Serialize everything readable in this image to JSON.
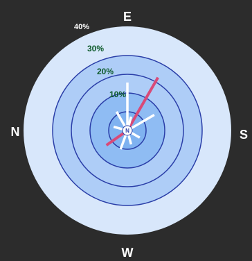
{
  "colors": {
    "background": "#2c2c2c",
    "ring_fill_outer": "#d8e7fb",
    "ring_fill_mid": "#aecdf7",
    "ring_fill_inner": "#8fbcf3",
    "ring_fill_center": "#7fb2f0",
    "ring_stroke": "#2a3ea8",
    "compass_text": "#ffffff",
    "pct_label_text": "#0d5a2a",
    "pct_label_40": "#ffffff",
    "ray_white": "#ffffff",
    "ray_pink": "#d94a78"
  },
  "chart_data": {
    "type": "wind-rose",
    "compass": {
      "top": "E",
      "right": "S",
      "bottom": "W",
      "left": "N"
    },
    "rings": [
      {
        "pct": 10,
        "label": "10%"
      },
      {
        "pct": 20,
        "label": "20%"
      },
      {
        "pct": 30,
        "label": "30%"
      },
      {
        "pct": 40,
        "label": "40%"
      }
    ],
    "center_label": "N",
    "rays": [
      {
        "bearing_from_top_deg": 0,
        "length_pct": 22,
        "color": "white"
      },
      {
        "bearing_from_top_deg": 30,
        "length_pct": 29,
        "color": "pink"
      },
      {
        "bearing_from_top_deg": 60,
        "length_pct": 13,
        "color": "white"
      },
      {
        "bearing_from_top_deg": 200,
        "length_pct": 7,
        "color": "white"
      },
      {
        "bearing_from_top_deg": 235,
        "length_pct": 10,
        "color": "pink"
      },
      {
        "bearing_from_top_deg": 330,
        "length_pct": 8,
        "color": "white"
      },
      {
        "bearing_from_top_deg": 15,
        "length_pct": 4,
        "color": "white"
      },
      {
        "bearing_from_top_deg": 120,
        "length_pct": 4,
        "color": "white"
      },
      {
        "bearing_from_top_deg": 165,
        "length_pct": 4,
        "color": "white"
      },
      {
        "bearing_from_top_deg": 285,
        "length_pct": 4,
        "color": "white"
      }
    ]
  }
}
